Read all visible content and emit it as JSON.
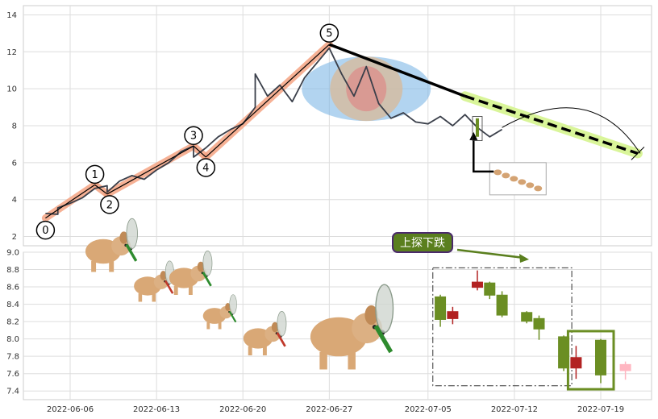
{
  "chart_data": [
    {
      "type": "line",
      "title": "",
      "xlabel": "",
      "ylabel": "",
      "ylim": [
        1.5,
        14.5
      ],
      "yticks": [
        2,
        4,
        6,
        8,
        10,
        12,
        14
      ],
      "grid": true,
      "series_color": "#3a3f4a",
      "price": [
        [
          "2022-06-04",
          3.25
        ],
        [
          "2022-06-05",
          3.2
        ],
        [
          "2022-06-05",
          3.55
        ],
        [
          "2022-06-06",
          3.8
        ],
        [
          "2022-06-07",
          4.1
        ],
        [
          "2022-06-08",
          4.6
        ],
        [
          "2022-06-09",
          4.75
        ],
        [
          "2022-06-09",
          4.4
        ],
        [
          "2022-06-10",
          5.0
        ],
        [
          "2022-06-11",
          5.3
        ],
        [
          "2022-06-12",
          5.1
        ],
        [
          "2022-06-13",
          5.6
        ],
        [
          "2022-06-14",
          6.0
        ],
        [
          "2022-06-15",
          6.6
        ],
        [
          "2022-06-16",
          6.9
        ],
        [
          "2022-06-16",
          6.3
        ],
        [
          "2022-06-17",
          6.8
        ],
        [
          "2022-06-18",
          7.4
        ],
        [
          "2022-06-19",
          7.8
        ],
        [
          "2022-06-20",
          8.1
        ],
        [
          "2022-06-21",
          9.0
        ],
        [
          "2022-06-21",
          10.8
        ],
        [
          "2022-06-22",
          9.6
        ],
        [
          "2022-06-23",
          10.2
        ],
        [
          "2022-06-24",
          9.3
        ],
        [
          "2022-06-25",
          10.6
        ],
        [
          "2022-06-26",
          11.4
        ],
        [
          "2022-06-27",
          12.2
        ],
        [
          "2022-06-28",
          10.8
        ],
        [
          "2022-06-29",
          9.6
        ],
        [
          "2022-06-30",
          11.2
        ],
        [
          "2022-07-01",
          9.2
        ],
        [
          "2022-07-02",
          8.4
        ],
        [
          "2022-07-03",
          8.7
        ],
        [
          "2022-07-04",
          8.2
        ],
        [
          "2022-07-05",
          8.1
        ],
        [
          "2022-07-06",
          8.5
        ],
        [
          "2022-07-07",
          8.0
        ],
        [
          "2022-07-08",
          8.6
        ],
        [
          "2022-07-09",
          7.9
        ],
        [
          "2022-07-10",
          7.4
        ],
        [
          "2022-07-11",
          7.8
        ]
      ],
      "waves": [
        {
          "label": "0",
          "date": "2022-06-04",
          "value": 3.0
        },
        {
          "label": "1",
          "date": "2022-06-08",
          "value": 4.8
        },
        {
          "label": "2",
          "date": "2022-06-09",
          "value": 4.3
        },
        {
          "label": "3",
          "date": "2022-06-16",
          "value": 6.9
        },
        {
          "label": "4",
          "date": "2022-06-17",
          "value": 6.3
        },
        {
          "label": "5",
          "date": "2022-06-27",
          "value": 12.4
        }
      ],
      "trend_segments": [
        {
          "from": [
            "2022-06-04",
            3.0
          ],
          "to": [
            "2022-06-08",
            4.8
          ]
        },
        {
          "from": [
            "2022-06-08",
            4.8
          ],
          "to": [
            "2022-06-09",
            4.3
          ]
        },
        {
          "from": [
            "2022-06-09",
            4.3
          ],
          "to": [
            "2022-06-16",
            6.9
          ]
        },
        {
          "from": [
            "2022-06-16",
            6.9
          ],
          "to": [
            "2022-06-17",
            6.3
          ]
        },
        {
          "from": [
            "2022-06-17",
            6.3
          ],
          "to": [
            "2022-06-27",
            12.4
          ]
        }
      ],
      "forecast_line": {
        "from": [
          "2022-06-27",
          12.4
        ],
        "mid": [
          "2022-07-08",
          9.6
        ],
        "to": [
          "2022-07-22",
          6.5
        ]
      },
      "highlight_color": "#f4a383",
      "forecast_highlight_color": "#d9f599"
    },
    {
      "type": "candlestick",
      "title": "",
      "xlabel": "",
      "ylabel": "",
      "ylim": [
        7.3,
        9.0
      ],
      "yticks": [
        7.4,
        7.6,
        7.8,
        8.0,
        8.2,
        8.4,
        8.6,
        8.8,
        9.0
      ],
      "xticks": [
        "2022-06-06",
        "2022-06-13",
        "2022-06-20",
        "2022-06-27",
        "2022-07-05",
        "2022-07-12",
        "2022-07-19"
      ],
      "grid": true,
      "annotation": "上探下跌",
      "up_color": "#b22222",
      "down_color": "#6b8e23",
      "pending_color": "#ffb6c1",
      "candles": [
        {
          "date": "2022-07-06",
          "open": 8.49,
          "close": 8.22,
          "high": 8.51,
          "low": 8.14
        },
        {
          "date": "2022-07-07",
          "open": 8.23,
          "close": 8.32,
          "high": 8.37,
          "low": 8.17
        },
        {
          "date": "2022-07-09",
          "open": 8.59,
          "close": 8.66,
          "high": 8.79,
          "low": 8.56
        },
        {
          "date": "2022-07-10",
          "open": 8.65,
          "close": 8.5,
          "high": 8.66,
          "low": 8.46
        },
        {
          "date": "2022-07-11",
          "open": 8.51,
          "close": 8.27,
          "high": 8.55,
          "low": 8.25
        },
        {
          "date": "2022-07-13",
          "open": 8.31,
          "close": 8.2,
          "high": 8.32,
          "low": 8.18
        },
        {
          "date": "2022-07-14",
          "open": 8.24,
          "close": 8.11,
          "high": 8.27,
          "low": 7.99
        },
        {
          "date": "2022-07-16",
          "open": 8.03,
          "close": 7.66,
          "high": 8.04,
          "low": 7.63
        },
        {
          "date": "2022-07-17",
          "open": 7.66,
          "close": 7.79,
          "high": 7.92,
          "low": 7.54
        },
        {
          "date": "2022-07-19",
          "open": 7.99,
          "close": 7.58,
          "high": 8.0,
          "low": 7.49
        },
        {
          "date": "2022-07-21",
          "open": 7.63,
          "close": 7.71,
          "high": 7.74,
          "low": 7.53
        }
      ]
    }
  ]
}
